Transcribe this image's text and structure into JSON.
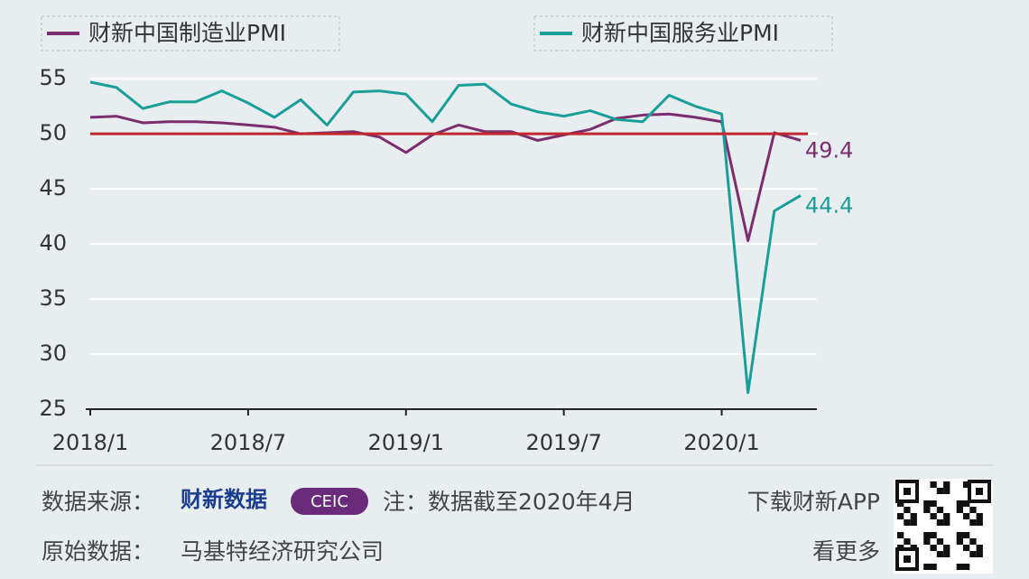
{
  "chart_data": {
    "type": "line",
    "categories": [
      "2018/1",
      null,
      null,
      null,
      null,
      null,
      "2018/7",
      null,
      null,
      null,
      null,
      null,
      "2019/1",
      null,
      null,
      null,
      null,
      null,
      "2019/7",
      null,
      null,
      null,
      null,
      null,
      "2020/1",
      null,
      null,
      null
    ],
    "series": [
      {
        "name": "财新中国制造业PMI",
        "color": "#7b2d6e",
        "values": [
          51.5,
          51.6,
          51.0,
          51.1,
          51.1,
          51.0,
          50.8,
          50.6,
          50.0,
          50.1,
          50.2,
          49.7,
          48.3,
          49.9,
          50.8,
          50.2,
          50.2,
          49.4,
          49.9,
          50.4,
          51.4,
          51.7,
          51.8,
          51.5,
          51.1,
          40.3,
          50.1,
          49.4
        ]
      },
      {
        "name": "财新中国服务业PMI",
        "color": "#1a9e9a",
        "values": [
          54.7,
          54.2,
          52.3,
          52.9,
          52.9,
          53.9,
          52.8,
          51.5,
          53.1,
          50.8,
          53.8,
          53.9,
          53.6,
          51.1,
          54.4,
          54.5,
          52.7,
          52.0,
          51.6,
          52.1,
          51.3,
          51.1,
          53.5,
          52.5,
          51.8,
          26.5,
          43.0,
          44.4
        ]
      }
    ],
    "ylim": [
      25,
      56
    ],
    "yticks": [
      25,
      30,
      35,
      40,
      45,
      50,
      55
    ],
    "grid": true,
    "reference_line": 50,
    "reference_color": "#c0282d",
    "source_label": "数据来源：",
    "logos": [
      "财新数据",
      "CEIC"
    ],
    "note": "注：数据截至2020年4月",
    "app": "下载财新APP",
    "original_label": "原始数据：",
    "original": "马基特经济研究公司",
    "more": "看更多"
  }
}
